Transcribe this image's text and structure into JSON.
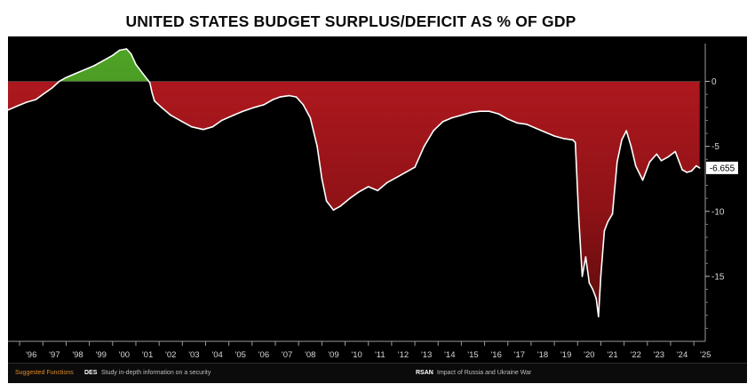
{
  "title": "UNITED STATES BUDGET SURPLUS/DEFICIT AS % OF GDP",
  "colors": {
    "background": "#000000",
    "deficit_fill": "#a3151b",
    "surplus_fill": "#3e8e1d",
    "line": "#ffffff",
    "footer_link": "#e08a22"
  },
  "footer": {
    "suggested": "Suggested Functions",
    "des_key": "DES",
    "des_desc": "Study in-depth information on a security",
    "rsan_key": "RSAN",
    "rsan_desc": "Impact of Russia and Ukraine War"
  },
  "chart_data": {
    "type": "area",
    "title": "UNITED STATES BUDGET SURPLUS/DEFICIT AS % OF GDP",
    "xlabel": "",
    "ylabel": "",
    "xlim": [
      1995.5,
      2025.3
    ],
    "ylim": [
      -20,
      2.5
    ],
    "yticks": [
      0,
      -5,
      -10,
      -15
    ],
    "ytick_labels": [
      "0",
      "-5",
      "-10",
      "-15"
    ],
    "xtick_labels": [
      "'96",
      "'97",
      "'98",
      "'99",
      "'00",
      "'01",
      "'02",
      "'03",
      "'04",
      "'05",
      "'06",
      "'07",
      "'08",
      "'09",
      "'10",
      "'11",
      "'12",
      "'13",
      "'14",
      "'15",
      "'16",
      "'17",
      "'18",
      "'19",
      "'20",
      "'21",
      "'22",
      "'23",
      "'24",
      "'25"
    ],
    "xtick_positions": [
      1996,
      1997,
      1998,
      1999,
      2000,
      2001,
      2002,
      2003,
      2004,
      2005,
      2006,
      2007,
      2008,
      2009,
      2010,
      2011,
      2012,
      2013,
      2014,
      2015,
      2016,
      2017,
      2018,
      2019,
      2020,
      2021,
      2022,
      2023,
      2024,
      2025
    ],
    "last_value_label": "-6.655",
    "series": [
      {
        "name": "US Budget Surplus/Deficit % of GDP",
        "x": [
          1995.5,
          1995.9,
          1996.3,
          1996.7,
          1997.0,
          1997.4,
          1997.7,
          1998.0,
          1998.4,
          1998.8,
          1999.2,
          1999.6,
          2000.0,
          2000.3,
          2000.6,
          2000.8,
          2001.0,
          2001.3,
          2001.6,
          2001.7,
          2001.8,
          2002.1,
          2002.5,
          2003.0,
          2003.4,
          2003.9,
          2004.3,
          2004.7,
          2005.2,
          2005.6,
          2006.1,
          2006.5,
          2006.9,
          2007.2,
          2007.6,
          2007.9,
          2008.2,
          2008.5,
          2008.8,
          2009.0,
          2009.2,
          2009.5,
          2009.8,
          2010.2,
          2010.6,
          2011.0,
          2011.4,
          2011.8,
          2012.2,
          2012.6,
          2013.0,
          2013.4,
          2013.8,
          2014.2,
          2014.6,
          2015.0,
          2015.4,
          2015.8,
          2016.2,
          2016.6,
          2017.0,
          2017.4,
          2017.8,
          2018.2,
          2018.6,
          2019.0,
          2019.4,
          2019.8,
          2019.9,
          2020.05,
          2020.2,
          2020.35,
          2020.5,
          2020.65,
          2020.8,
          2020.9,
          2021.0,
          2021.15,
          2021.3,
          2021.5,
          2021.7,
          2021.9,
          2022.1,
          2022.3,
          2022.5,
          2022.8,
          2023.1,
          2023.4,
          2023.6,
          2023.9,
          2024.2,
          2024.5,
          2024.7,
          2024.9,
          2025.1,
          2025.25
        ],
        "values": [
          -2.2,
          -1.9,
          -1.6,
          -1.4,
          -1.0,
          -0.5,
          0.0,
          0.3,
          0.6,
          0.9,
          1.2,
          1.6,
          2.0,
          2.4,
          2.5,
          2.1,
          1.3,
          0.6,
          -0.1,
          -0.9,
          -1.5,
          -2.0,
          -2.6,
          -3.1,
          -3.5,
          -3.7,
          -3.5,
          -3.0,
          -2.6,
          -2.3,
          -2.0,
          -1.8,
          -1.4,
          -1.2,
          -1.1,
          -1.2,
          -1.8,
          -2.8,
          -5.0,
          -7.5,
          -9.2,
          -9.9,
          -9.6,
          -9.0,
          -8.5,
          -8.1,
          -8.4,
          -7.8,
          -7.4,
          -7.0,
          -6.6,
          -5.0,
          -3.8,
          -3.1,
          -2.8,
          -2.6,
          -2.4,
          -2.3,
          -2.3,
          -2.5,
          -2.9,
          -3.2,
          -3.3,
          -3.6,
          -3.9,
          -4.2,
          -4.4,
          -4.5,
          -4.7,
          -10.5,
          -15.0,
          -13.5,
          -15.5,
          -16.0,
          -16.7,
          -18.1,
          -15.0,
          -11.5,
          -10.8,
          -10.2,
          -6.2,
          -4.5,
          -3.8,
          -5.0,
          -6.5,
          -7.6,
          -6.2,
          -5.6,
          -6.1,
          -5.8,
          -5.4,
          -6.8,
          -7.0,
          -6.9,
          -6.5,
          -6.655
        ]
      }
    ]
  }
}
